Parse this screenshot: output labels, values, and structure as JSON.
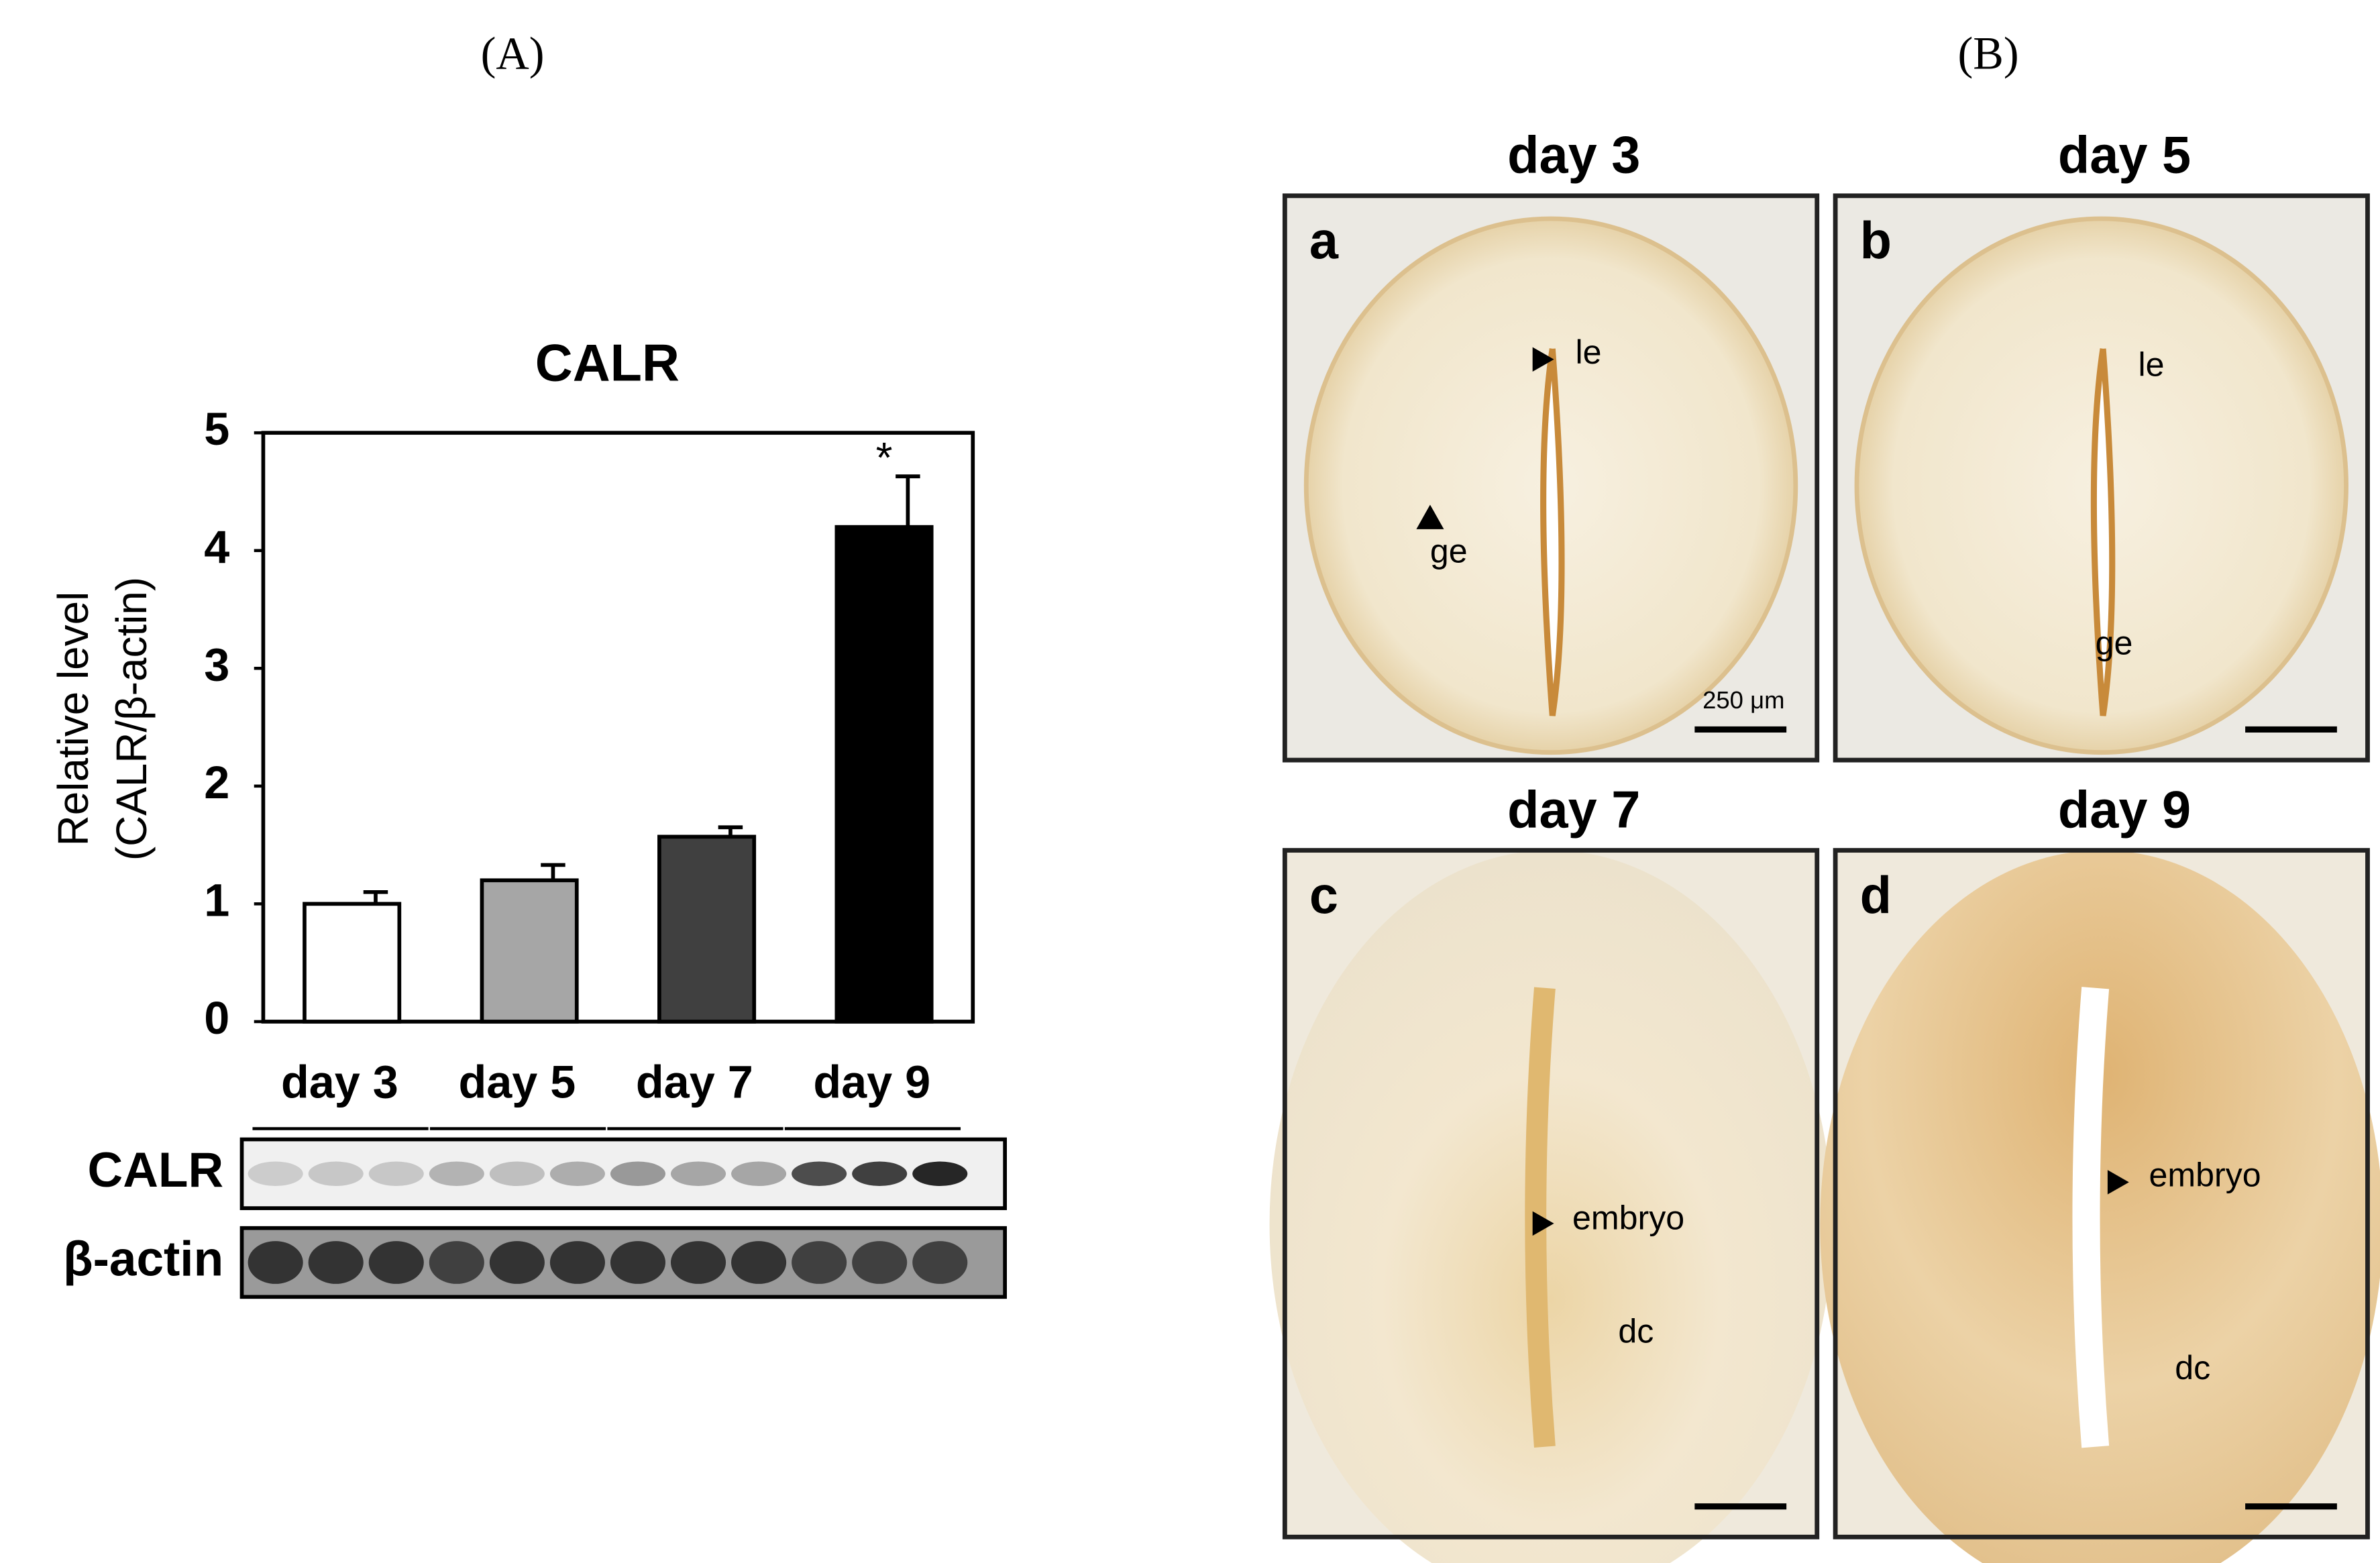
{
  "panel_labels": [
    "(A)",
    "(B)"
  ],
  "chart_data": {
    "type": "bar",
    "title": "CALR",
    "y_label": [
      "Relative level",
      "(CALR/β-actin)"
    ],
    "categories": [
      "day 3",
      "day 5",
      "day 7",
      "day 9"
    ],
    "values": [
      1.0,
      1.2,
      1.57,
      4.2
    ],
    "errors": [
      0.1,
      0.13,
      0.08,
      0.43
    ],
    "colors": [
      "#ffffff",
      "#a6a6a6",
      "#404040",
      "#000000"
    ],
    "annotation": "*",
    "ylim": [
      0,
      5
    ],
    "yticks": [
      0,
      1,
      2,
      3,
      4,
      5
    ],
    "grid": false
  },
  "blot": {
    "rows": [
      "CALR",
      "β-actin"
    ]
  },
  "micrographs": [
    {
      "title": "day 3",
      "letter": "a",
      "labels": [
        "le",
        "ge"
      ],
      "scale": "250 μm"
    },
    {
      "title": "day 5",
      "letter": "b",
      "labels": [
        "le",
        "ge"
      ]
    },
    {
      "title": "day 7",
      "letter": "c",
      "labels": [
        "embryo",
        "dc"
      ]
    },
    {
      "title": "day 9",
      "letter": "d",
      "labels": [
        "embryo",
        "dc"
      ]
    }
  ]
}
